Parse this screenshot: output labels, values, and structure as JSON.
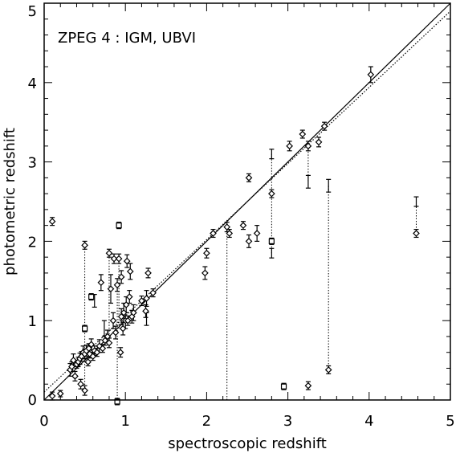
{
  "chart_data": {
    "type": "scatter",
    "annotation": "ZPEG 4 : IGM, UBVI",
    "xlabel": "spectroscopic redshift",
    "ylabel": "photometric redshift",
    "xlim": [
      0,
      5
    ],
    "ylim": [
      0,
      5
    ],
    "xticks": [
      "0",
      "1",
      "2",
      "3",
      "4",
      "5"
    ],
    "yticks": [
      "0",
      "1",
      "2",
      "3",
      "4",
      "5"
    ],
    "grid": false,
    "lines": [
      {
        "name": "identity",
        "style": "solid",
        "points": [
          [
            0,
            0
          ],
          [
            5,
            5
          ]
        ]
      },
      {
        "name": "fit",
        "style": "dotted",
        "points": [
          [
            0,
            0.1
          ],
          [
            5,
            4.9
          ]
        ]
      }
    ],
    "diamonds": [
      [
        0.1,
        2.25,
        0.05
      ],
      [
        0.1,
        0.05,
        0.05
      ],
      [
        0.2,
        0.08,
        0.04
      ],
      [
        0.32,
        0.38,
        0.08
      ],
      [
        0.34,
        0.42,
        0.06
      ],
      [
        0.36,
        0.5,
        0.08
      ],
      [
        0.38,
        0.3,
        0.06
      ],
      [
        0.4,
        0.45,
        0.05
      ],
      [
        0.42,
        0.48,
        0.06
      ],
      [
        0.44,
        0.52,
        0.07
      ],
      [
        0.45,
        0.2,
        0.06
      ],
      [
        0.46,
        0.55,
        0.06
      ],
      [
        0.48,
        0.6,
        0.08
      ],
      [
        0.5,
        1.95,
        0.05
      ],
      [
        0.5,
        0.12,
        0.06
      ],
      [
        0.5,
        0.58,
        0.06
      ],
      [
        0.52,
        0.62,
        0.07
      ],
      [
        0.54,
        0.48,
        0.05
      ],
      [
        0.55,
        0.65,
        0.06
      ],
      [
        0.56,
        0.58,
        0.05
      ],
      [
        0.58,
        0.7,
        0.07
      ],
      [
        0.6,
        0.55,
        0.05
      ],
      [
        0.62,
        0.62,
        0.06
      ],
      [
        0.65,
        0.6,
        0.05
      ],
      [
        0.68,
        0.68,
        0.08
      ],
      [
        0.7,
        1.48,
        0.1
      ],
      [
        0.72,
        0.65,
        0.05
      ],
      [
        0.75,
        0.75,
        0.06
      ],
      [
        0.78,
        0.8,
        0.08
      ],
      [
        0.8,
        1.85,
        0.05
      ],
      [
        0.8,
        0.72,
        0.06
      ],
      [
        0.82,
        1.4,
        0.18
      ],
      [
        0.85,
        1.0,
        0.1
      ],
      [
        0.86,
        1.78,
        0.06
      ],
      [
        0.88,
        0.85,
        0.08
      ],
      [
        0.9,
        1.45,
        0.08
      ],
      [
        0.92,
        1.78,
        0.06
      ],
      [
        0.94,
        0.6,
        0.06
      ],
      [
        0.95,
        1.05,
        0.1
      ],
      [
        0.95,
        1.55,
        0.08
      ],
      [
        0.97,
        0.9,
        0.08
      ],
      [
        0.98,
        1.1,
        0.12
      ],
      [
        1.0,
        1.0,
        0.1
      ],
      [
        1.01,
        1.2,
        0.1
      ],
      [
        1.02,
        1.75,
        0.08
      ],
      [
        1.03,
        1.0,
        0.06
      ],
      [
        1.05,
        1.3,
        0.08
      ],
      [
        1.06,
        1.62,
        0.1
      ],
      [
        1.08,
        1.05,
        0.08
      ],
      [
        1.1,
        1.1,
        0.1
      ],
      [
        1.2,
        1.25,
        0.06
      ],
      [
        1.25,
        1.12,
        0.08
      ],
      [
        1.26,
        1.28,
        0.1
      ],
      [
        1.28,
        1.6,
        0.06
      ],
      [
        1.34,
        1.35,
        0.05
      ],
      [
        1.98,
        1.6,
        0.08
      ],
      [
        2.0,
        1.85,
        0.06
      ],
      [
        2.08,
        2.1,
        0.05
      ],
      [
        2.25,
        2.18,
        0.06
      ],
      [
        2.28,
        2.1,
        0.05
      ],
      [
        2.45,
        2.2,
        0.05
      ],
      [
        2.52,
        2.8,
        0.05
      ],
      [
        2.52,
        2.0,
        0.08
      ],
      [
        2.62,
        2.1,
        0.1
      ],
      [
        2.8,
        2.6,
        0.05
      ],
      [
        3.02,
        3.2,
        0.06
      ],
      [
        3.18,
        3.35,
        0.05
      ],
      [
        3.25,
        3.2,
        0.06
      ],
      [
        3.25,
        0.18,
        0.05
      ],
      [
        3.38,
        3.25,
        0.06
      ],
      [
        3.45,
        3.45,
        0.05
      ],
      [
        3.5,
        0.38,
        0.05
      ],
      [
        4.02,
        4.1,
        0.1
      ],
      [
        4.58,
        2.1,
        0.05
      ]
    ],
    "squares": [
      [
        0.5,
        0.9
      ],
      [
        0.58,
        1.3
      ],
      [
        0.92,
        2.2
      ],
      [
        0.9,
        -0.02
      ],
      [
        2.8,
        2.0
      ],
      [
        2.95,
        0.17
      ]
    ],
    "error_bars": [
      [
        2.8,
        1.85,
        0.06
      ],
      [
        2.8,
        3.1,
        0.06
      ],
      [
        3.25,
        2.75,
        0.08
      ],
      [
        3.5,
        2.7,
        0.08
      ],
      [
        4.58,
        2.5,
        0.06
      ],
      [
        0.62,
        1.25,
        0.08
      ],
      [
        0.74,
        0.9,
        0.1
      ],
      [
        1.26,
        1.02,
        0.08
      ]
    ],
    "dotted_connectors": [
      [
        0.5,
        0.12,
        0.5,
        1.95
      ],
      [
        0.8,
        0.72,
        0.8,
        1.85
      ],
      [
        0.92,
        0.9,
        0.92,
        1.78
      ],
      [
        2.25,
        0.0,
        2.25,
        2.18
      ],
      [
        2.8,
        1.85,
        2.8,
        3.1
      ],
      [
        3.25,
        3.2,
        3.25,
        2.75
      ],
      [
        3.5,
        0.38,
        3.5,
        2.7
      ],
      [
        4.58,
        2.1,
        4.58,
        2.5
      ],
      [
        0.9,
        -0.02,
        0.9,
        1.45
      ]
    ]
  }
}
